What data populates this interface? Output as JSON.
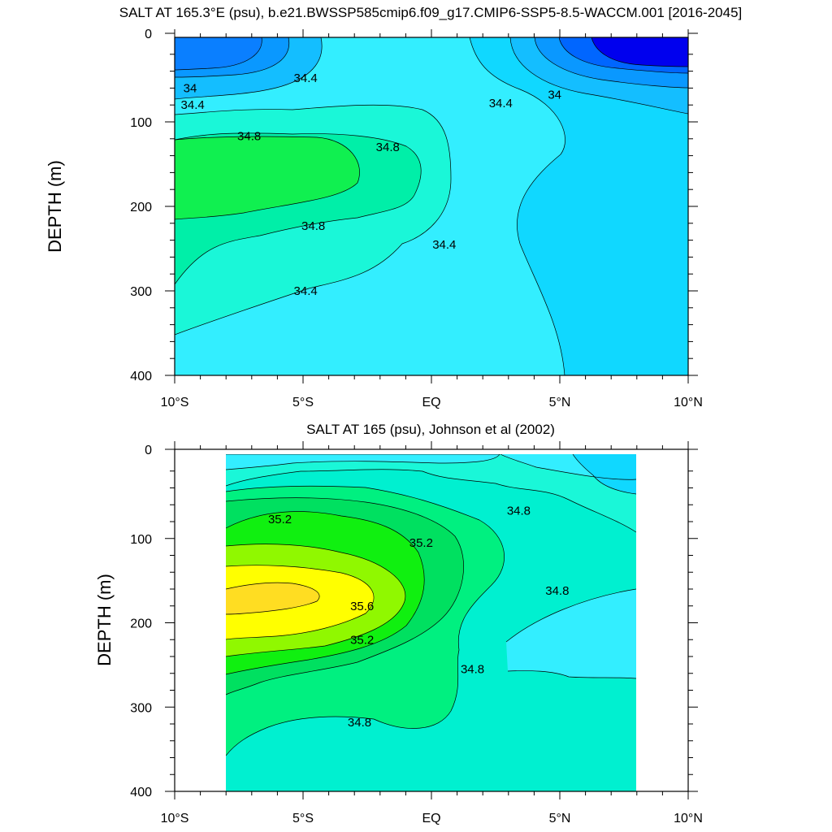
{
  "chart_data": [
    {
      "type": "contour",
      "title": "SALT AT 165.3°E (psu), b.e21.BWSSP585cmip6.f09_g17.CMIP6-SSP5-8.5-WACCM.001 [2016-2045]",
      "ylabel": "DEPTH (m)",
      "xlim": [
        -10,
        10
      ],
      "ylim": [
        0,
        400
      ],
      "y_reversed": true,
      "x_ticks": [
        -10,
        -5,
        0,
        5,
        10
      ],
      "x_tick_labels": [
        "10°S",
        "5°S",
        "EQ",
        "5°N",
        "10°N"
      ],
      "y_ticks": [
        0,
        100,
        200,
        300,
        400
      ],
      "y_tick_labels": [
        "0",
        "100",
        "200",
        "300",
        "400"
      ],
      "contour_levels": [
        33.4,
        33.6,
        33.8,
        34.0,
        34.2,
        34.4,
        34.6,
        34.8,
        35.0
      ],
      "contour_labels": [
        {
          "text": "34.4",
          "x": -4.9,
          "y": 48
        },
        {
          "text": "34",
          "x": -9.4,
          "y": 60
        },
        {
          "text": "34.4",
          "x": -9.3,
          "y": 80
        },
        {
          "text": "34.4",
          "x": 2.7,
          "y": 78
        },
        {
          "text": "34",
          "x": 4.8,
          "y": 68
        },
        {
          "text": "34.8",
          "x": -7.1,
          "y": 117
        },
        {
          "text": "34.8",
          "x": -1.7,
          "y": 130
        },
        {
          "text": "34.8",
          "x": -4.6,
          "y": 223
        },
        {
          "text": "34.4",
          "x": 0.5,
          "y": 245
        },
        {
          "text": "34.4",
          "x": -4.9,
          "y": 300
        }
      ]
    },
    {
      "type": "contour",
      "title": "SALT AT 165 (psu), Johnson et al (2002)",
      "ylabel": "DEPTH (m)",
      "xlim": [
        -10,
        10
      ],
      "ylim": [
        0,
        400
      ],
      "y_reversed": true,
      "data_x_extent": [
        -8,
        8
      ],
      "x_ticks": [
        -10,
        -5,
        0,
        5,
        10
      ],
      "x_tick_labels": [
        "10°S",
        "5°S",
        "EQ",
        "5°N",
        "10°N"
      ],
      "y_ticks": [
        0,
        100,
        200,
        300,
        400
      ],
      "y_tick_labels": [
        "0",
        "100",
        "200",
        "300",
        "400"
      ],
      "contour_levels": [
        34.2,
        34.4,
        34.6,
        34.8,
        35.0,
        35.2,
        35.4,
        35.6,
        35.8
      ],
      "contour_labels": [
        {
          "text": "35.2",
          "x": -5.9,
          "y": 77
        },
        {
          "text": "35.2",
          "x": -0.4,
          "y": 105
        },
        {
          "text": "34.8",
          "x": 3.4,
          "y": 67
        },
        {
          "text": "35.6",
          "x": -2.7,
          "y": 180
        },
        {
          "text": "34.8",
          "x": 4.9,
          "y": 162
        },
        {
          "text": "35.2",
          "x": -2.7,
          "y": 220
        },
        {
          "text": "34.8",
          "x": 1.6,
          "y": 255
        },
        {
          "text": "34.8",
          "x": -2.8,
          "y": 318
        }
      ]
    }
  ]
}
